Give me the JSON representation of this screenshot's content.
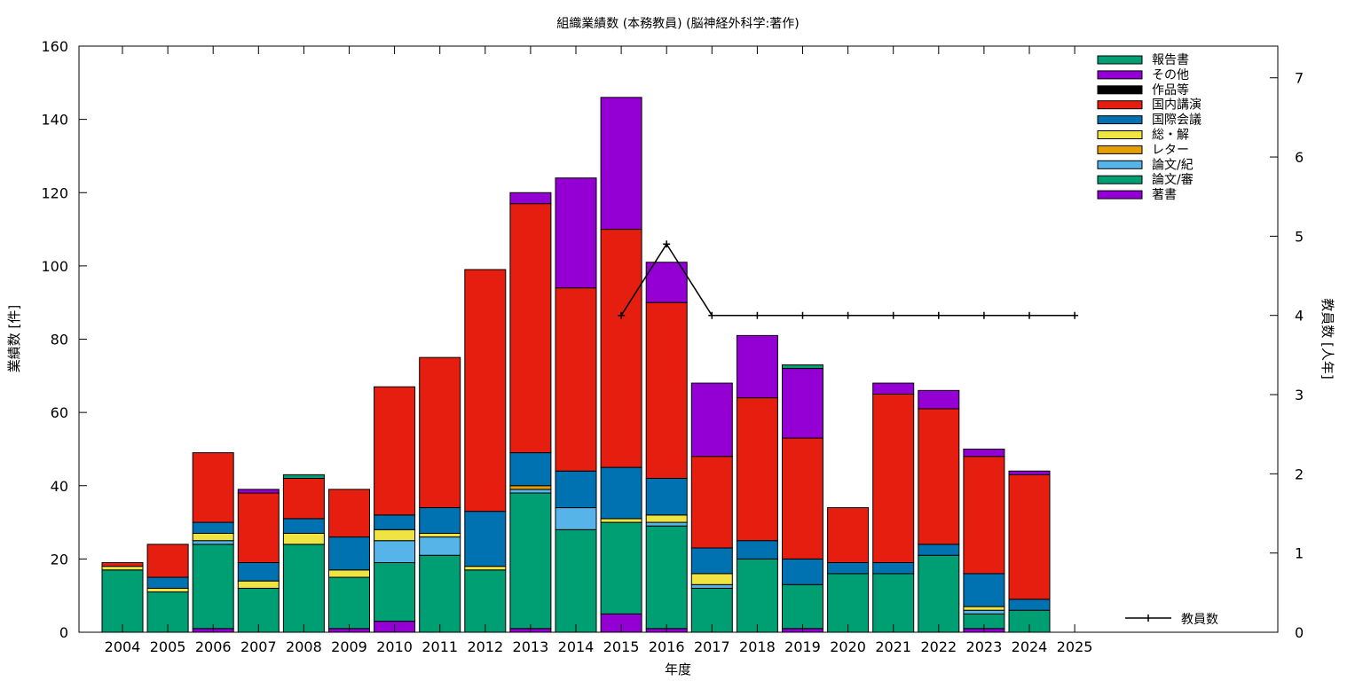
{
  "chart_data": {
    "type": "bar",
    "stacked": true,
    "title": "組織業績数 (本務教員) (脳神経外科学:著作)",
    "xlabel": "年度",
    "ylabel": "業績数 [件]",
    "y2label": "教員数 [人年]",
    "ylim": [
      0,
      160
    ],
    "y2lim": [
      0,
      7.4
    ],
    "yticks": [
      0,
      20,
      40,
      60,
      80,
      100,
      120,
      140,
      160
    ],
    "y2ticks": [
      0,
      1,
      2,
      3,
      4,
      5,
      6,
      7
    ],
    "grid": false,
    "legend_position": "top-right",
    "categories": [
      "2004",
      "2005",
      "2006",
      "2007",
      "2008",
      "2009",
      "2010",
      "2011",
      "2012",
      "2013",
      "2014",
      "2015",
      "2016",
      "2017",
      "2018",
      "2019",
      "2020",
      "2021",
      "2022",
      "2023",
      "2024",
      "2025"
    ],
    "series": [
      {
        "name": "著書",
        "color": "#9400d3",
        "values": [
          0,
          0,
          1,
          0,
          0,
          1,
          3,
          0,
          0,
          1,
          0,
          5,
          1,
          0,
          0,
          1,
          0,
          0,
          0,
          1,
          0,
          0
        ]
      },
      {
        "name": "論文/審",
        "color": "#009e73",
        "values": [
          17,
          11,
          23,
          12,
          24,
          14,
          16,
          21,
          17,
          37,
          28,
          25,
          28,
          12,
          20,
          12,
          16,
          16,
          21,
          4,
          6,
          0
        ]
      },
      {
        "name": "論文/紀",
        "color": "#56b4e9",
        "values": [
          0,
          0,
          1,
          0,
          0,
          0,
          6,
          5,
          0,
          1,
          6,
          0,
          1,
          1,
          0,
          0,
          0,
          0,
          0,
          1,
          0,
          0
        ]
      },
      {
        "name": "レター",
        "color": "#e69f00",
        "values": [
          0,
          0,
          0,
          0,
          0,
          0,
          0,
          0,
          0,
          1,
          0,
          0,
          0,
          0,
          0,
          0,
          0,
          0,
          0,
          0,
          0,
          0
        ]
      },
      {
        "name": "総・解",
        "color": "#f0e442",
        "values": [
          1,
          1,
          2,
          2,
          3,
          2,
          3,
          1,
          1,
          0,
          0,
          1,
          2,
          3,
          0,
          0,
          0,
          0,
          0,
          1,
          0,
          0
        ]
      },
      {
        "name": "国際会議",
        "color": "#0072b2",
        "values": [
          0,
          3,
          3,
          5,
          4,
          9,
          4,
          7,
          15,
          9,
          10,
          14,
          10,
          7,
          5,
          7,
          3,
          3,
          3,
          9,
          3,
          0
        ]
      },
      {
        "name": "国内講演",
        "color": "#e51e10",
        "values": [
          1,
          9,
          19,
          19,
          11,
          13,
          35,
          41,
          66,
          68,
          50,
          65,
          48,
          25,
          39,
          33,
          15,
          46,
          37,
          32,
          34,
          0
        ]
      },
      {
        "name": "作品等",
        "color": "#000000",
        "values": [
          0,
          0,
          0,
          0,
          0,
          0,
          0,
          0,
          0,
          0,
          0,
          0,
          0,
          0,
          0,
          0,
          0,
          0,
          0,
          0,
          0,
          0
        ]
      },
      {
        "name": "その他",
        "color": "#9400d3",
        "values": [
          0,
          0,
          0,
          1,
          0,
          0,
          0,
          0,
          0,
          3,
          30,
          36,
          11,
          20,
          17,
          19,
          0,
          3,
          5,
          2,
          1,
          0
        ]
      },
      {
        "name": "報告書",
        "color": "#009e73",
        "values": [
          0,
          0,
          0,
          0,
          1,
          0,
          0,
          0,
          0,
          0,
          0,
          0,
          0,
          0,
          0,
          1,
          0,
          0,
          0,
          0,
          0,
          0
        ]
      }
    ],
    "line_series": {
      "name": "教員数",
      "color": "#000000",
      "axis": "y2",
      "x": [
        "2015",
        "2016",
        "2017",
        "2018",
        "2019",
        "2020",
        "2021",
        "2022",
        "2023",
        "2024",
        "2025"
      ],
      "values": [
        4,
        4.9,
        4,
        4,
        4,
        4,
        4,
        4,
        4,
        4,
        4
      ]
    }
  }
}
